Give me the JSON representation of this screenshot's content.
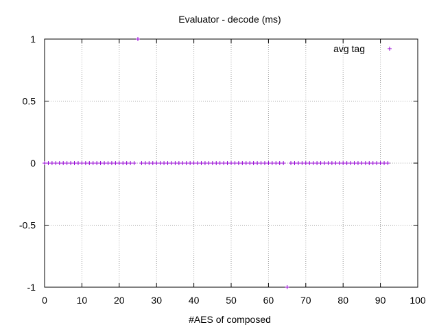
{
  "chart_data": {
    "type": "scatter",
    "title": "Evaluator - decode (ms)",
    "xlabel": "#AES of composed",
    "ylabel": "",
    "xlim": [
      0,
      100
    ],
    "ylim": [
      -1,
      1
    ],
    "x_ticks": [
      "0",
      "10",
      "20",
      "30",
      "40",
      "50",
      "60",
      "70",
      "80",
      "90",
      "100"
    ],
    "y_ticks": [
      "1",
      "0.5",
      "0",
      "-0.5",
      "-1"
    ],
    "grid": true,
    "legend_position": "top-right",
    "series": [
      {
        "name": "avg tag",
        "color": "#9400d3",
        "marker": "plus",
        "points": [
          [
            0,
            0
          ],
          [
            1,
            0
          ],
          [
            2,
            0
          ],
          [
            3,
            0
          ],
          [
            4,
            0
          ],
          [
            5,
            0
          ],
          [
            6,
            0
          ],
          [
            7,
            0
          ],
          [
            8,
            0
          ],
          [
            9,
            0
          ],
          [
            10,
            0
          ],
          [
            11,
            0
          ],
          [
            12,
            0
          ],
          [
            13,
            0
          ],
          [
            14,
            0
          ],
          [
            15,
            0
          ],
          [
            16,
            0
          ],
          [
            17,
            0
          ],
          [
            18,
            0
          ],
          [
            19,
            0
          ],
          [
            20,
            0
          ],
          [
            21,
            0
          ],
          [
            22,
            0
          ],
          [
            23,
            0
          ],
          [
            24,
            0
          ],
          [
            25,
            1
          ],
          [
            26,
            0
          ],
          [
            27,
            0
          ],
          [
            28,
            0
          ],
          [
            29,
            0
          ],
          [
            30,
            0
          ],
          [
            31,
            0
          ],
          [
            32,
            0
          ],
          [
            33,
            0
          ],
          [
            34,
            0
          ],
          [
            35,
            0
          ],
          [
            36,
            0
          ],
          [
            37,
            0
          ],
          [
            38,
            0
          ],
          [
            39,
            0
          ],
          [
            40,
            0
          ],
          [
            41,
            0
          ],
          [
            42,
            0
          ],
          [
            43,
            0
          ],
          [
            44,
            0
          ],
          [
            45,
            0
          ],
          [
            46,
            0
          ],
          [
            47,
            0
          ],
          [
            48,
            0
          ],
          [
            49,
            0
          ],
          [
            50,
            0
          ],
          [
            51,
            0
          ],
          [
            52,
            0
          ],
          [
            53,
            0
          ],
          [
            54,
            0
          ],
          [
            55,
            0
          ],
          [
            56,
            0
          ],
          [
            57,
            0
          ],
          [
            58,
            0
          ],
          [
            59,
            0
          ],
          [
            60,
            0
          ],
          [
            61,
            0
          ],
          [
            62,
            0
          ],
          [
            63,
            0
          ],
          [
            64,
            0
          ],
          [
            65,
            -1
          ],
          [
            66,
            0
          ],
          [
            67,
            0
          ],
          [
            68,
            0
          ],
          [
            69,
            0
          ],
          [
            70,
            0
          ],
          [
            71,
            0
          ],
          [
            72,
            0
          ],
          [
            73,
            0
          ],
          [
            74,
            0
          ],
          [
            75,
            0
          ],
          [
            76,
            0
          ],
          [
            77,
            0
          ],
          [
            78,
            0
          ],
          [
            79,
            0
          ],
          [
            80,
            0
          ],
          [
            81,
            0
          ],
          [
            82,
            0
          ],
          [
            83,
            0
          ],
          [
            84,
            0
          ],
          [
            85,
            0
          ],
          [
            86,
            0
          ],
          [
            87,
            0
          ],
          [
            88,
            0
          ],
          [
            89,
            0
          ],
          [
            90,
            0
          ],
          [
            91,
            0
          ],
          [
            92,
            0
          ]
        ]
      }
    ]
  }
}
